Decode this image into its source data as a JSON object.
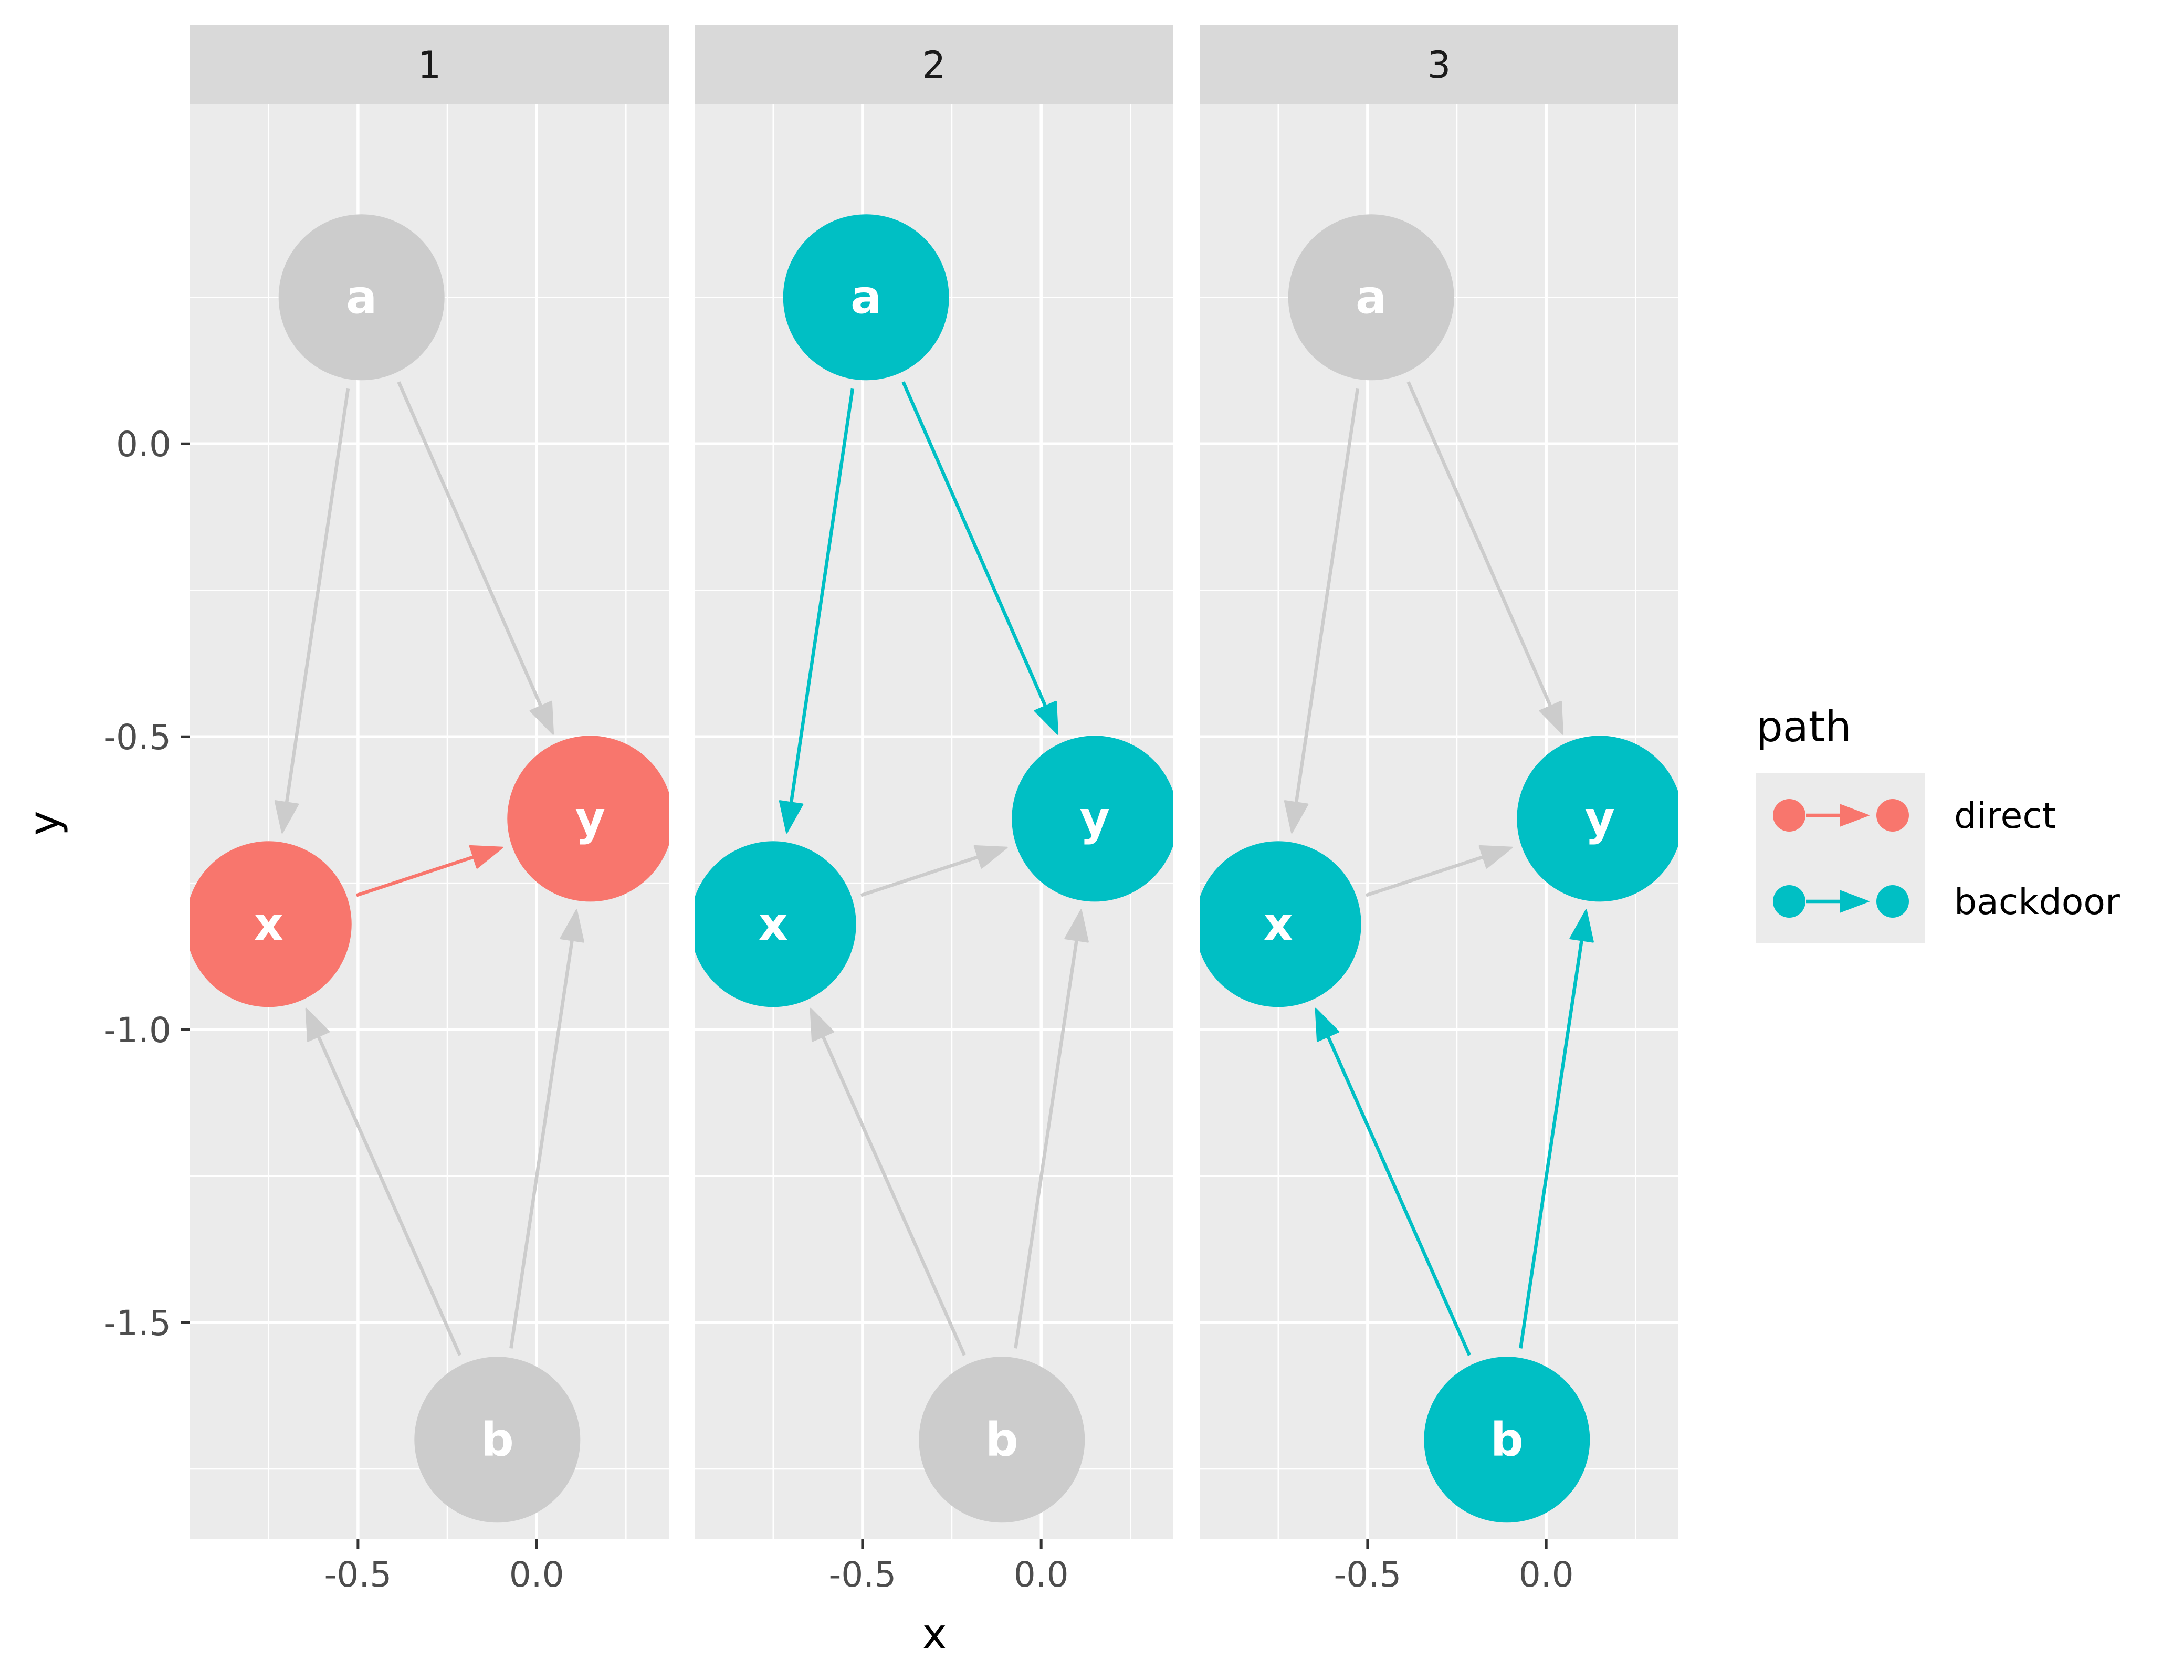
{
  "chart_data": {
    "type": "scatter",
    "subtype": "dag-facets",
    "xlabel": "x",
    "ylabel": "y",
    "xlim": [
      -0.97,
      0.37
    ],
    "ylim": [
      -1.87,
      0.58
    ],
    "x_ticks": [
      -0.5,
      0.0
    ],
    "x_tick_labels": [
      "-0.5",
      "0.0"
    ],
    "y_ticks": [
      0.0,
      -0.5,
      -1.0,
      -1.5
    ],
    "y_tick_labels": [
      "0.0",
      "-0.5",
      "-1.0",
      "-1.5"
    ],
    "grid": true,
    "nodes": [
      {
        "name": "a",
        "x": -0.49,
        "y": 0.25
      },
      {
        "name": "x",
        "x": -0.75,
        "y": -0.82
      },
      {
        "name": "y",
        "x": 0.15,
        "y": -0.64
      },
      {
        "name": "b",
        "x": -0.11,
        "y": -1.7
      }
    ],
    "edges": [
      {
        "from": "a",
        "to": "x"
      },
      {
        "from": "a",
        "to": "y"
      },
      {
        "from": "x",
        "to": "y"
      },
      {
        "from": "b",
        "to": "x"
      },
      {
        "from": "b",
        "to": "y"
      }
    ],
    "legend": {
      "title": "path",
      "position": "right",
      "entries": [
        {
          "label": "direct",
          "color": "#F8766D"
        },
        {
          "label": "backdoor",
          "color": "#00BFC4"
        }
      ]
    },
    "inactive_color": "#CCCCCC",
    "facets": [
      {
        "label": "1",
        "highlighted_nodes": {
          "x": "direct",
          "y": "direct"
        },
        "highlighted_edges": [
          {
            "from": "x",
            "to": "y",
            "path": "direct"
          }
        ]
      },
      {
        "label": "2",
        "highlighted_nodes": {
          "a": "backdoor",
          "x": "backdoor",
          "y": "backdoor"
        },
        "highlighted_edges": [
          {
            "from": "a",
            "to": "x",
            "path": "backdoor"
          },
          {
            "from": "a",
            "to": "y",
            "path": "backdoor"
          }
        ]
      },
      {
        "label": "3",
        "highlighted_nodes": {
          "b": "backdoor",
          "x": "backdoor",
          "y": "backdoor"
        },
        "highlighted_edges": [
          {
            "from": "b",
            "to": "x",
            "path": "backdoor"
          },
          {
            "from": "b",
            "to": "y",
            "path": "backdoor"
          }
        ]
      }
    ]
  }
}
